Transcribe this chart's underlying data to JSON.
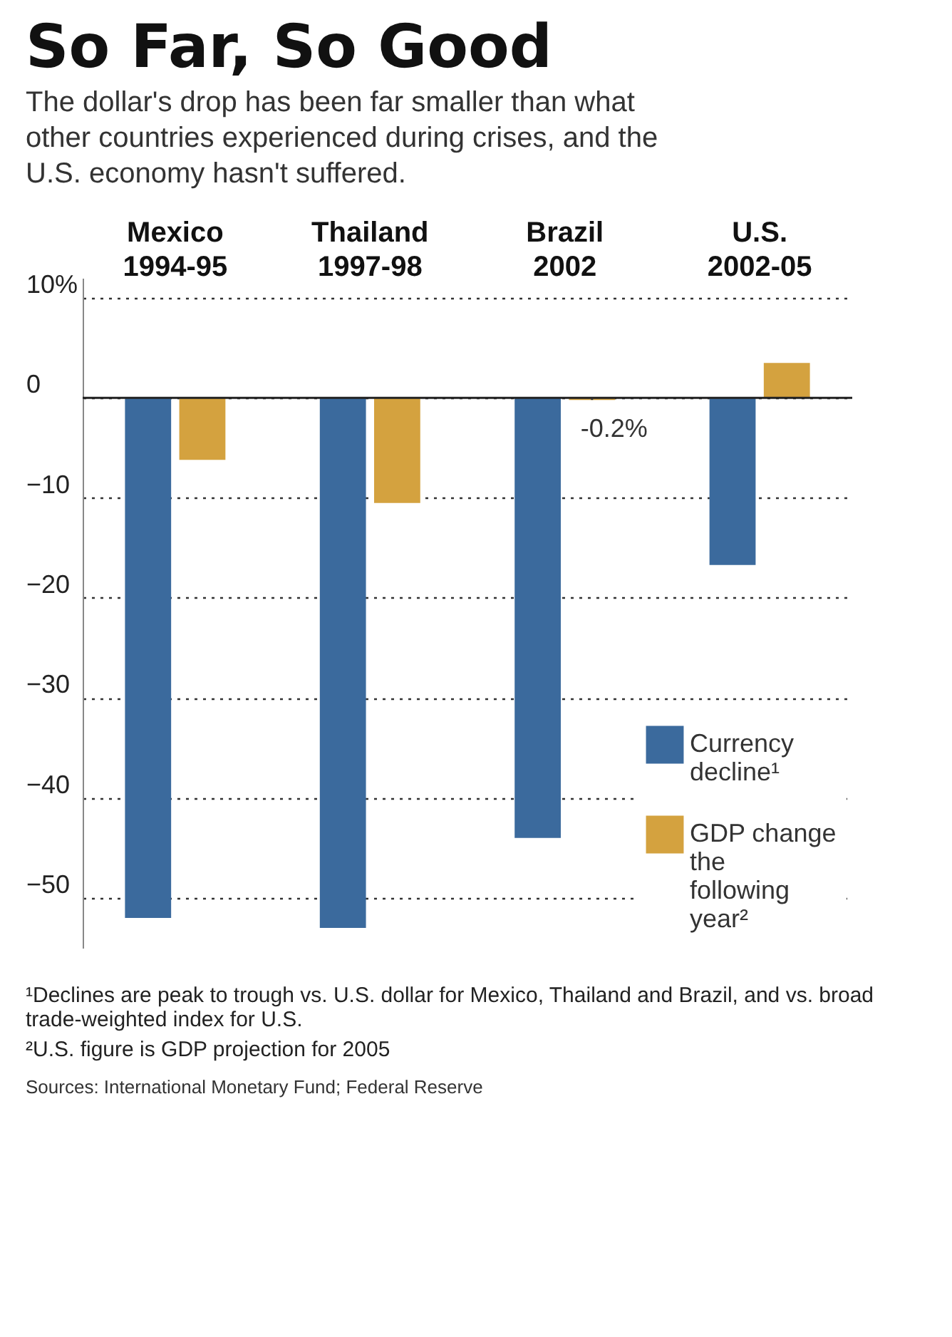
{
  "chart_data": {
    "type": "bar",
    "title": "So Far, So Good",
    "subtitle": "The dollar's drop has been far smaller than what other countries experienced during crises, and the U.S. economy hasn't suffered.",
    "categories": [
      "Mexico 1994-95",
      "Thailand 1997-98",
      "Brazil 2002",
      "U.S. 2002-05"
    ],
    "series": [
      {
        "name": "Currency decline¹",
        "color": "#3b6a9d",
        "values": [
          -52,
          -53,
          -44,
          -16.7
        ]
      },
      {
        "name": "GDP change the following year²",
        "color": "#d4a23f",
        "values": [
          -6.2,
          -10.5,
          -0.2,
          3.5
        ],
        "value_labels": [
          null,
          null,
          "-0.2%",
          null
        ]
      }
    ],
    "ylim": [
      -55,
      12
    ],
    "yticks": [
      {
        "value": 10,
        "label": "10%"
      },
      0,
      -10,
      -20,
      -30,
      -40,
      -50
    ],
    "grid": "y",
    "legend": "bottom right",
    "ref_lines": [
      {
        "axis": "y",
        "value": 0
      }
    ],
    "annotations": [
      "¹Declines are peak to trough vs. U.S. dollar for Mexico, Thailand and Brazil, and vs. broad trade-weighted index for U.S.",
      "²U.S. figure is GDP projection for 2005",
      "Sources: International Monetary Fund; Federal Reserve"
    ]
  }
}
